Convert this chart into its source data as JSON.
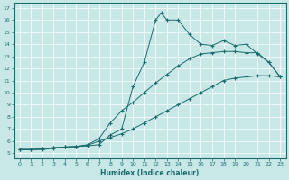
{
  "xlabel": "Humidex (Indice chaleur)",
  "bg_color": "#c8e8e8",
  "line_color": "#1a6b6b",
  "grid_color": "#ffffff",
  "xlim": [
    -0.5,
    23.5
  ],
  "ylim": [
    4.6,
    17.4
  ],
  "xticks": [
    0,
    1,
    2,
    3,
    4,
    5,
    6,
    7,
    8,
    9,
    10,
    11,
    12,
    13,
    14,
    15,
    16,
    17,
    18,
    19,
    20,
    21,
    22,
    23
  ],
  "yticks": [
    5,
    6,
    7,
    8,
    9,
    10,
    11,
    12,
    13,
    14,
    15,
    16,
    17
  ],
  "line1_x": [
    0,
    1,
    2,
    3,
    4,
    5,
    6,
    7,
    8,
    9,
    10,
    11,
    12,
    12.5,
    13,
    14,
    15,
    16,
    17,
    18,
    19,
    20,
    21,
    22,
    23
  ],
  "line1_y": [
    5.3,
    5.3,
    5.3,
    5.4,
    5.5,
    5.55,
    5.6,
    5.7,
    6.5,
    7.0,
    10.5,
    12.5,
    16.0,
    16.6,
    16.0,
    16.0,
    14.8,
    14.0,
    13.9,
    14.3,
    13.9,
    14.0,
    13.2,
    12.5,
    11.3
  ],
  "line2_x": [
    0,
    1,
    2,
    3,
    4,
    5,
    6,
    7,
    8,
    9,
    10,
    11,
    12,
    13,
    14,
    15,
    16,
    17,
    18,
    19,
    20,
    21,
    22,
    23
  ],
  "line2_y": [
    5.3,
    5.3,
    5.35,
    5.45,
    5.5,
    5.55,
    5.7,
    6.2,
    7.5,
    8.5,
    9.2,
    10.0,
    10.8,
    11.5,
    12.2,
    12.8,
    13.2,
    13.3,
    13.4,
    13.4,
    13.3,
    13.3,
    12.5,
    11.3
  ],
  "line3_x": [
    0,
    1,
    2,
    3,
    4,
    5,
    6,
    7,
    8,
    9,
    10,
    11,
    12,
    13,
    14,
    15,
    16,
    17,
    18,
    19,
    20,
    21,
    22,
    23
  ],
  "line3_y": [
    5.3,
    5.3,
    5.35,
    5.45,
    5.5,
    5.55,
    5.65,
    6.0,
    6.3,
    6.6,
    7.0,
    7.5,
    8.0,
    8.5,
    9.0,
    9.5,
    10.0,
    10.5,
    11.0,
    11.2,
    11.3,
    11.4,
    11.4,
    11.3
  ]
}
